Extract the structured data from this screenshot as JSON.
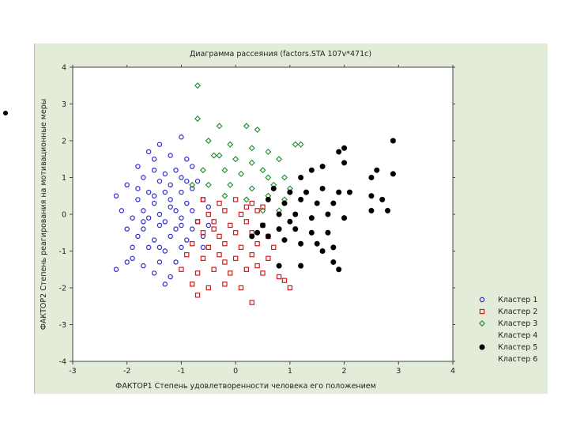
{
  "chart_data": {
    "type": "scatter",
    "title": "Диаграмма рассеяния (factors.STA 107v*471c)",
    "xlabel": "ФАКТОР1  Степень удовлетворенности человека его положением",
    "ylabel": "ФАКТОР2  Степень реагирования на мотивационные меры",
    "xlim": [
      -3,
      4
    ],
    "ylim": [
      -4,
      4
    ],
    "xticks": [
      "-3",
      "-2",
      "-1",
      "0",
      "1",
      "2",
      "3",
      "4"
    ],
    "yticks": [
      "4",
      "3",
      "2",
      "1",
      "0",
      "-1",
      "-2",
      "-3",
      "-4"
    ],
    "grid": false,
    "legend_position": "bottom-right",
    "series": [
      {
        "name": "Кластер 1",
        "marker": "circle-open",
        "color": "#2a2ad0",
        "points": [
          [
            -1.0,
            2.1
          ],
          [
            -1.4,
            1.9
          ],
          [
            -1.6,
            1.7
          ],
          [
            -1.2,
            1.6
          ],
          [
            -0.9,
            1.5
          ],
          [
            -1.8,
            1.3
          ],
          [
            -1.5,
            1.2
          ],
          [
            -1.3,
            1.1
          ],
          [
            -1.1,
            1.2
          ],
          [
            -0.8,
            1.3
          ],
          [
            -1.7,
            1.0
          ],
          [
            -1.4,
            0.9
          ],
          [
            -1.2,
            0.8
          ],
          [
            -0.9,
            0.9
          ],
          [
            -2.0,
            0.8
          ],
          [
            -1.6,
            0.6
          ],
          [
            -1.3,
            0.6
          ],
          [
            -1.0,
            0.6
          ],
          [
            -0.8,
            0.7
          ],
          [
            -2.2,
            0.5
          ],
          [
            -1.8,
            0.4
          ],
          [
            -1.5,
            0.3
          ],
          [
            -1.2,
            0.4
          ],
          [
            -0.9,
            0.3
          ],
          [
            -0.6,
            0.4
          ],
          [
            -2.1,
            0.1
          ],
          [
            -1.7,
            0.1
          ],
          [
            -1.4,
            0.0
          ],
          [
            -1.1,
            0.1
          ],
          [
            -0.8,
            0.1
          ],
          [
            -0.5,
            0.2
          ],
          [
            -1.9,
            -0.1
          ],
          [
            -1.6,
            -0.1
          ],
          [
            -1.3,
            -0.2
          ],
          [
            -1.0,
            -0.1
          ],
          [
            -0.7,
            -0.2
          ],
          [
            -2.0,
            -0.4
          ],
          [
            -1.7,
            -0.4
          ],
          [
            -1.4,
            -0.3
          ],
          [
            -1.1,
            -0.4
          ],
          [
            -0.8,
            -0.4
          ],
          [
            -0.5,
            -0.3
          ],
          [
            -1.8,
            -0.6
          ],
          [
            -1.5,
            -0.7
          ],
          [
            -1.2,
            -0.6
          ],
          [
            -0.9,
            -0.7
          ],
          [
            -0.6,
            -0.6
          ],
          [
            -1.9,
            -0.9
          ],
          [
            -1.6,
            -0.9
          ],
          [
            -1.3,
            -1.0
          ],
          [
            -1.0,
            -0.9
          ],
          [
            -2.0,
            -1.3
          ],
          [
            -1.7,
            -1.4
          ],
          [
            -1.4,
            -1.3
          ],
          [
            -1.1,
            -1.3
          ],
          [
            -2.2,
            -1.5
          ],
          [
            -1.5,
            -1.6
          ],
          [
            -1.2,
            -1.7
          ],
          [
            -1.9,
            -1.2
          ],
          [
            -1.3,
            -1.9
          ],
          [
            -1.7,
            -0.2
          ],
          [
            -1.5,
            0.5
          ],
          [
            -1.2,
            0.2
          ],
          [
            -1.0,
            -0.3
          ],
          [
            -1.4,
            -0.9
          ],
          [
            -1.8,
            0.7
          ],
          [
            -0.7,
            0.9
          ],
          [
            -0.6,
            -0.9
          ],
          [
            -1.0,
            1.0
          ],
          [
            -1.5,
            1.5
          ]
        ]
      },
      {
        "name": "Кластер 2",
        "marker": "square-open",
        "color": "#d01c1c",
        "points": [
          [
            -0.6,
            0.4
          ],
          [
            -0.3,
            0.3
          ],
          [
            0.0,
            0.4
          ],
          [
            0.3,
            0.3
          ],
          [
            -0.5,
            0.0
          ],
          [
            -0.2,
            0.1
          ],
          [
            0.1,
            0.0
          ],
          [
            0.4,
            0.1
          ],
          [
            -0.7,
            -0.2
          ],
          [
            -0.4,
            -0.2
          ],
          [
            -0.1,
            -0.3
          ],
          [
            0.2,
            -0.2
          ],
          [
            0.5,
            -0.3
          ],
          [
            -0.6,
            -0.5
          ],
          [
            -0.3,
            -0.6
          ],
          [
            0.0,
            -0.5
          ],
          [
            0.3,
            -0.5
          ],
          [
            0.6,
            -0.6
          ],
          [
            -0.8,
            -0.8
          ],
          [
            -0.5,
            -0.9
          ],
          [
            -0.2,
            -0.8
          ],
          [
            0.1,
            -0.9
          ],
          [
            0.4,
            -0.8
          ],
          [
            0.7,
            -0.9
          ],
          [
            -0.9,
            -1.1
          ],
          [
            -0.6,
            -1.2
          ],
          [
            -0.3,
            -1.1
          ],
          [
            0.0,
            -1.2
          ],
          [
            0.3,
            -1.1
          ],
          [
            0.6,
            -1.2
          ],
          [
            -1.0,
            -1.5
          ],
          [
            -0.7,
            -1.6
          ],
          [
            -0.4,
            -1.5
          ],
          [
            -0.1,
            -1.6
          ],
          [
            0.2,
            -1.5
          ],
          [
            0.5,
            -1.6
          ],
          [
            0.8,
            -1.7
          ],
          [
            -0.8,
            -1.9
          ],
          [
            -0.5,
            -2.0
          ],
          [
            -0.2,
            -1.9
          ],
          [
            0.1,
            -2.0
          ],
          [
            0.9,
            -1.8
          ],
          [
            1.0,
            -2.0
          ],
          [
            -0.7,
            -2.2
          ],
          [
            0.3,
            -2.4
          ],
          [
            -0.4,
            -0.4
          ],
          [
            0.2,
            0.2
          ],
          [
            0.5,
            0.2
          ],
          [
            -0.2,
            -1.3
          ],
          [
            0.4,
            -1.4
          ]
        ]
      },
      {
        "name": "Кластер 3",
        "marker": "diamond-open",
        "color": "#1f8a2a",
        "points": [
          [
            -0.7,
            3.5
          ],
          [
            -0.7,
            2.6
          ],
          [
            -0.3,
            2.4
          ],
          [
            0.2,
            2.4
          ],
          [
            0.4,
            2.3
          ],
          [
            -0.5,
            2.0
          ],
          [
            -0.1,
            1.9
          ],
          [
            0.3,
            1.8
          ],
          [
            0.6,
            1.7
          ],
          [
            1.1,
            1.9
          ],
          [
            1.2,
            1.9
          ],
          [
            -0.4,
            1.6
          ],
          [
            0.0,
            1.5
          ],
          [
            0.3,
            1.4
          ],
          [
            0.8,
            1.5
          ],
          [
            -0.6,
            1.2
          ],
          [
            -0.2,
            1.2
          ],
          [
            0.1,
            1.1
          ],
          [
            0.5,
            1.2
          ],
          [
            0.9,
            1.0
          ],
          [
            -0.5,
            0.8
          ],
          [
            -0.1,
            0.8
          ],
          [
            0.3,
            0.7
          ],
          [
            0.7,
            0.8
          ],
          [
            1.0,
            0.7
          ],
          [
            -0.2,
            0.5
          ],
          [
            0.2,
            0.4
          ],
          [
            0.6,
            0.5
          ],
          [
            0.9,
            0.4
          ],
          [
            0.5,
            0.1
          ],
          [
            0.8,
            0.1
          ],
          [
            -0.3,
            1.6
          ],
          [
            -0.8,
            0.8
          ],
          [
            0.6,
            1.0
          ]
        ]
      },
      {
        "name": "Кластер 4",
        "marker": "none",
        "color": "#000000",
        "points": []
      },
      {
        "name": "Кластер 5",
        "marker": "circle-filled",
        "color": "#000000",
        "points": [
          [
            2.9,
            2.0
          ],
          [
            2.0,
            1.8
          ],
          [
            1.9,
            1.7
          ],
          [
            2.0,
            1.4
          ],
          [
            2.6,
            1.2
          ],
          [
            2.9,
            1.1
          ],
          [
            1.6,
            1.3
          ],
          [
            1.4,
            1.2
          ],
          [
            1.2,
            1.0
          ],
          [
            2.5,
            1.0
          ],
          [
            0.7,
            0.7
          ],
          [
            1.0,
            0.6
          ],
          [
            1.3,
            0.6
          ],
          [
            1.6,
            0.7
          ],
          [
            1.9,
            0.6
          ],
          [
            2.1,
            0.6
          ],
          [
            2.5,
            0.5
          ],
          [
            2.7,
            0.4
          ],
          [
            0.6,
            0.4
          ],
          [
            0.9,
            0.3
          ],
          [
            1.2,
            0.4
          ],
          [
            1.5,
            0.3
          ],
          [
            1.8,
            0.3
          ],
          [
            2.5,
            0.1
          ],
          [
            2.8,
            0.1
          ],
          [
            0.8,
            0.0
          ],
          [
            1.1,
            0.0
          ],
          [
            1.4,
            -0.1
          ],
          [
            1.7,
            0.0
          ],
          [
            2.0,
            -0.1
          ],
          [
            0.5,
            -0.3
          ],
          [
            0.8,
            -0.4
          ],
          [
            1.1,
            -0.4
          ],
          [
            1.4,
            -0.5
          ],
          [
            1.7,
            -0.5
          ],
          [
            0.6,
            -0.6
          ],
          [
            0.9,
            -0.7
          ],
          [
            1.2,
            -0.8
          ],
          [
            1.5,
            -0.8
          ],
          [
            1.8,
            -0.9
          ],
          [
            0.3,
            -0.6
          ],
          [
            1.6,
            -1.0
          ],
          [
            0.8,
            -1.4
          ],
          [
            1.2,
            -1.4
          ],
          [
            1.8,
            -1.3
          ],
          [
            1.9,
            -1.5
          ],
          [
            0.4,
            -0.5
          ],
          [
            1.0,
            -0.2
          ]
        ]
      },
      {
        "name": "Кластер 6",
        "marker": "none",
        "color": "#000000",
        "points": []
      }
    ]
  }
}
